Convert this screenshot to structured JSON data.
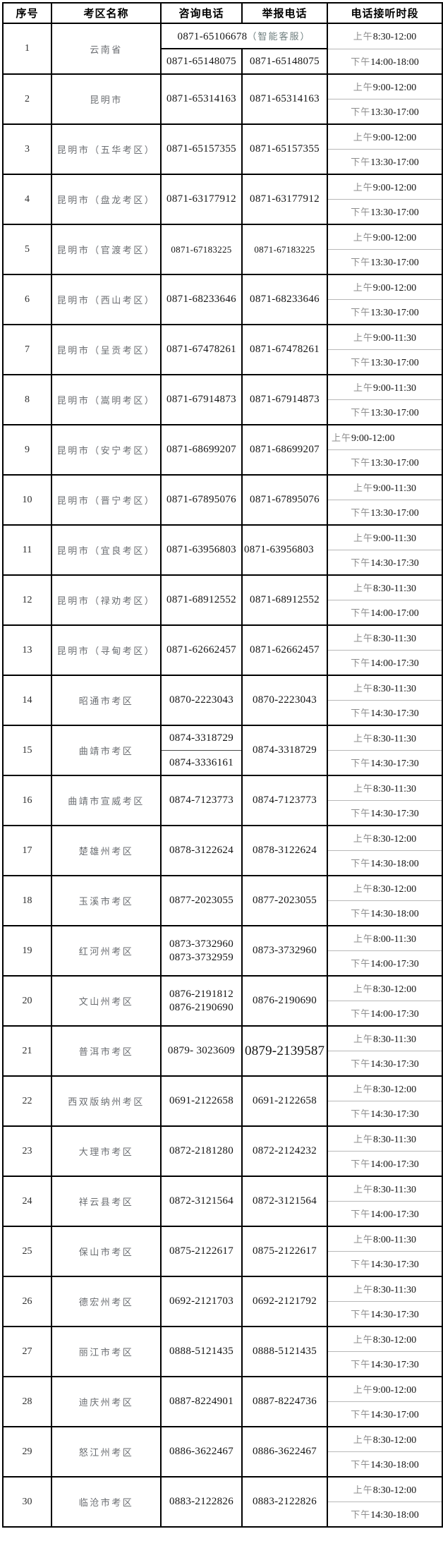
{
  "table": {
    "headers": [
      "序号",
      "考区名称",
      "咨询电话",
      "举报电话",
      "电话接听时段"
    ],
    "am_label": "上午",
    "pm_label": "下午",
    "border_color": "#000000",
    "divider_color": "#b8b8b8",
    "rows": [
      {
        "num": "1",
        "name": "云南省",
        "variant": "merged",
        "hotline": "0871-65106678",
        "hotline_note": "（智能客服）",
        "consult": "0871-65148075",
        "report": "0871-65148075",
        "am": "8:30-12:00",
        "pm": "14:00-18:00"
      },
      {
        "num": "2",
        "name": "昆明市",
        "consult": "0871-65314163",
        "report": "0871-65314163",
        "am": "9:00-12:00",
        "pm": "13:30-17:00"
      },
      {
        "num": "3",
        "name": "昆明市（五华考区）",
        "consult": "0871-65157355",
        "report": "0871-65157355",
        "am": "9:00-12:00",
        "pm": "13:30-17:00"
      },
      {
        "num": "4",
        "name": "昆明市（盘龙考区）",
        "consult": "0871-63177912",
        "report": "0871-63177912",
        "am": "9:00-12:00",
        "pm": "13:30-17:00"
      },
      {
        "num": "5",
        "name": "昆明市（官渡考区）",
        "consult": "0871-67183225",
        "report": "0871-67183225",
        "am": "9:00-12:00",
        "pm": "13:30-17:00",
        "small": true
      },
      {
        "num": "6",
        "name": "昆明市（西山考区）",
        "consult": "0871-68233646",
        "report": "0871-68233646",
        "am": "9:00-12:00",
        "pm": "13:30-17:00"
      },
      {
        "num": "7",
        "name": "昆明市（呈贡考区）",
        "consult": "0871-67478261",
        "report": "0871-67478261",
        "am": "9:00-11:30",
        "pm": "13:30-17:00"
      },
      {
        "num": "8",
        "name": "昆明市（嵩明考区）",
        "consult": "0871-67914873",
        "report": "0871-67914873",
        "am": "9:00-11:30",
        "pm": "13:30-17:00"
      },
      {
        "num": "9",
        "name": "昆明市（安宁考区）",
        "consult": "0871-68699207",
        "report": "0871-68699207",
        "am": "9:00-12:00",
        "pm": "13:30-17:00",
        "am_align": "left"
      },
      {
        "num": "10",
        "name": "昆明市（晋宁考区）",
        "consult": "0871-67895076",
        "report": "0871-67895076",
        "am": "9:00-11:30",
        "pm": "13:30-17:00"
      },
      {
        "num": "11",
        "name": "昆明市（宜良考区）",
        "consult": "0871-63956803",
        "report": "0871-63956803",
        "am": "9:00-11:30",
        "pm": "14:30-17:30",
        "report_align": "left"
      },
      {
        "num": "12",
        "name": "昆明市（禄劝考区）",
        "consult": "0871-68912552",
        "report": "0871-68912552",
        "am": "8:30-11:30",
        "pm": "14:00-17:00"
      },
      {
        "num": "13",
        "name": "昆明市（寻甸考区）",
        "consult": "0871-62662457",
        "report": "0871-62662457",
        "am": "8:30-11:30",
        "pm": "14:00-17:30"
      },
      {
        "num": "14",
        "name": "昭通市考区",
        "consult": "0870-2223043",
        "report": "0870-2223043",
        "am": "8:30-11:30",
        "pm": "14:30-17:30"
      },
      {
        "num": "15",
        "name": "曲靖市考区",
        "variant": "split-consult",
        "consult": [
          "0874-3318729",
          "0874-3336161"
        ],
        "report": "0874-3318729",
        "am": "8:30-11:30",
        "pm": "14:30-17:30"
      },
      {
        "num": "16",
        "name": "曲靖市宣威考区",
        "consult": "0874-7123773",
        "report": "0874-7123773",
        "am": "8:30-11:30",
        "pm": "14:30-17:30"
      },
      {
        "num": "17",
        "name": "楚雄州考区",
        "consult": "0878-3122624",
        "report": "0878-3122624",
        "am": "8:30-12:00",
        "pm": "14:30-18:00"
      },
      {
        "num": "18",
        "name": "玉溪市考区",
        "consult": "0877-2023055",
        "report": "0877-2023055",
        "am": "8:30-12:00",
        "pm": "14:30-18:00"
      },
      {
        "num": "19",
        "name": "红河州考区",
        "variant": "two-line-consult",
        "consult": [
          "0873-3732960",
          "0873-3732959"
        ],
        "report": "0873-3732960",
        "am": "8:00-11:30",
        "pm": "14:00-17:30"
      },
      {
        "num": "20",
        "name": "文山州考区",
        "variant": "two-line-consult",
        "consult": [
          "0876-2191812",
          "0876-2190690"
        ],
        "report": "0876-2190690",
        "am": "8:30-12:00",
        "pm": "14:00-17:30"
      },
      {
        "num": "21",
        "name": "普洱市考区",
        "consult": "0879- 3023609",
        "report": "0879-2139587",
        "am": "8:30-11:30",
        "pm": "14:30-17:30",
        "report_big": true
      },
      {
        "num": "22",
        "name": "西双版纳州考区",
        "consult": "0691-2122658",
        "report": "0691-2122658",
        "am": "8:30-12:00",
        "pm": "14:30-17:30"
      },
      {
        "num": "23",
        "name": "大理市考区",
        "consult": "0872-2181280",
        "report": "0872-2124232",
        "am": "8:30-11:30",
        "pm": "14:00-17:30"
      },
      {
        "num": "24",
        "name": "祥云县考区",
        "consult": "0872-3121564",
        "report": "0872-3121564",
        "am": "8:30-11:30",
        "pm": "14:00-17:30"
      },
      {
        "num": "25",
        "name": "保山市考区",
        "consult": "0875-2122617",
        "report": "0875-2122617",
        "am": "8:00-11:30",
        "pm": "14:30-17:30"
      },
      {
        "num": "26",
        "name": "德宏州考区",
        "consult": "0692-2121703",
        "report": "0692-2121792",
        "am": "8:30-11:30",
        "pm": "14:30-17:30"
      },
      {
        "num": "27",
        "name": "丽江市考区",
        "consult": "0888-5121435",
        "report": "0888-5121435",
        "am": "8:30-12:00",
        "pm": "14:30-17:30"
      },
      {
        "num": "28",
        "name": "迪庆州考区",
        "consult": "0887-8224901",
        "report": "0887-8224736",
        "am": "9:00-12:00",
        "pm": "14:30-17:00"
      },
      {
        "num": "29",
        "name": "怒江州考区",
        "consult": "0886-3622467",
        "report": "0886-3622467",
        "am": "8:30-12:00",
        "pm": "14:30-18:00"
      },
      {
        "num": "30",
        "name": "临沧市考区",
        "consult": "0883-2122826",
        "report": "0883-2122826",
        "am": "8:30-12:00",
        "pm": "14:30-18:00"
      }
    ]
  }
}
